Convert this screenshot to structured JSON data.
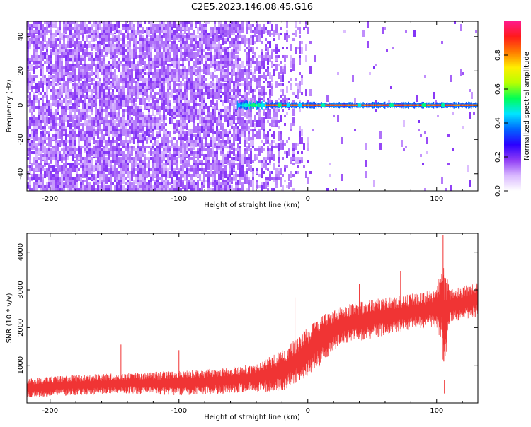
{
  "page_title": "C2E5.2023.146.08.45.G16",
  "chart_data": [
    {
      "type": "heatmap",
      "title": "C2E5.2023.146.08.45.G16",
      "xlabel": "Height of straight line (km)",
      "ylabel": "Frequency (Hz)",
      "xlim": [
        -218,
        132
      ],
      "ylim": [
        -50,
        49
      ],
      "x_ticks": [
        -200,
        -100,
        0,
        100
      ],
      "y_ticks": [
        -40,
        -20,
        0,
        20,
        40
      ],
      "grid": false,
      "colorbar": {
        "label": "Normalized spectral amplitude",
        "range": [
          0,
          1
        ],
        "ticks": [
          "0.0",
          "0.2",
          "0.4",
          "0.6",
          "0.8"
        ],
        "colors": [
          "#ffffff",
          "#d9b8ff",
          "#8f3cf5",
          "#2a00ff",
          "#0066ff",
          "#00e5ff",
          "#00ff55",
          "#b8ff00",
          "#ffee00",
          "#ff7a00",
          "#ff1a1a",
          "#ff1a8c"
        ]
      },
      "features": {
        "noise_region_x": [
          -218,
          12
        ],
        "signal_band_frequency": 0,
        "signal_band_x": [
          -55,
          132
        ],
        "signal_peak_amplitude": 0.9,
        "noise_amplitude": 0.25
      }
    },
    {
      "type": "line",
      "xlabel": "Height of straight line (km)",
      "ylabel": "SNR (10 * v/v)",
      "xlim": [
        -218,
        132
      ],
      "ylim": [
        0,
        4500
      ],
      "x_ticks": [
        -200,
        -100,
        0,
        100
      ],
      "y_ticks": [
        1000,
        2000,
        3000,
        4000
      ],
      "grid": false,
      "series": [
        {
          "color": "#f03434",
          "envelope": {
            "x": [
              -218,
              -180,
              -140,
              -100,
              -60,
              -40,
              -20,
              -10,
              0,
              10,
              20,
              30,
              40,
              50,
              60,
              80,
              100,
              104,
              106,
              108,
              110,
              120,
              132
            ],
            "low": [
              150,
              200,
              250,
              200,
              250,
              300,
              300,
              500,
              700,
              1000,
              1400,
              1600,
              1650,
              1700,
              1800,
              1950,
              2000,
              1500,
              400,
              1600,
              2100,
              2200,
              2300
            ],
            "high": [
              650,
              750,
              800,
              850,
              950,
              1050,
              1400,
              1700,
              2000,
              2300,
              2500,
              2600,
              2700,
              2750,
              2800,
              2900,
              3000,
              3800,
              3600,
              3400,
              3000,
              3100,
              3200
            ]
          },
          "spikes": [
            {
              "x": -145,
              "y": 1550
            },
            {
              "x": -100,
              "y": 1400
            },
            {
              "x": -10,
              "y": 2800
            },
            {
              "x": 40,
              "y": 3150
            },
            {
              "x": 72,
              "y": 3500
            },
            {
              "x": 105,
              "y": 4450
            },
            {
              "x": 106,
              "y": 250
            }
          ]
        }
      ]
    }
  ]
}
